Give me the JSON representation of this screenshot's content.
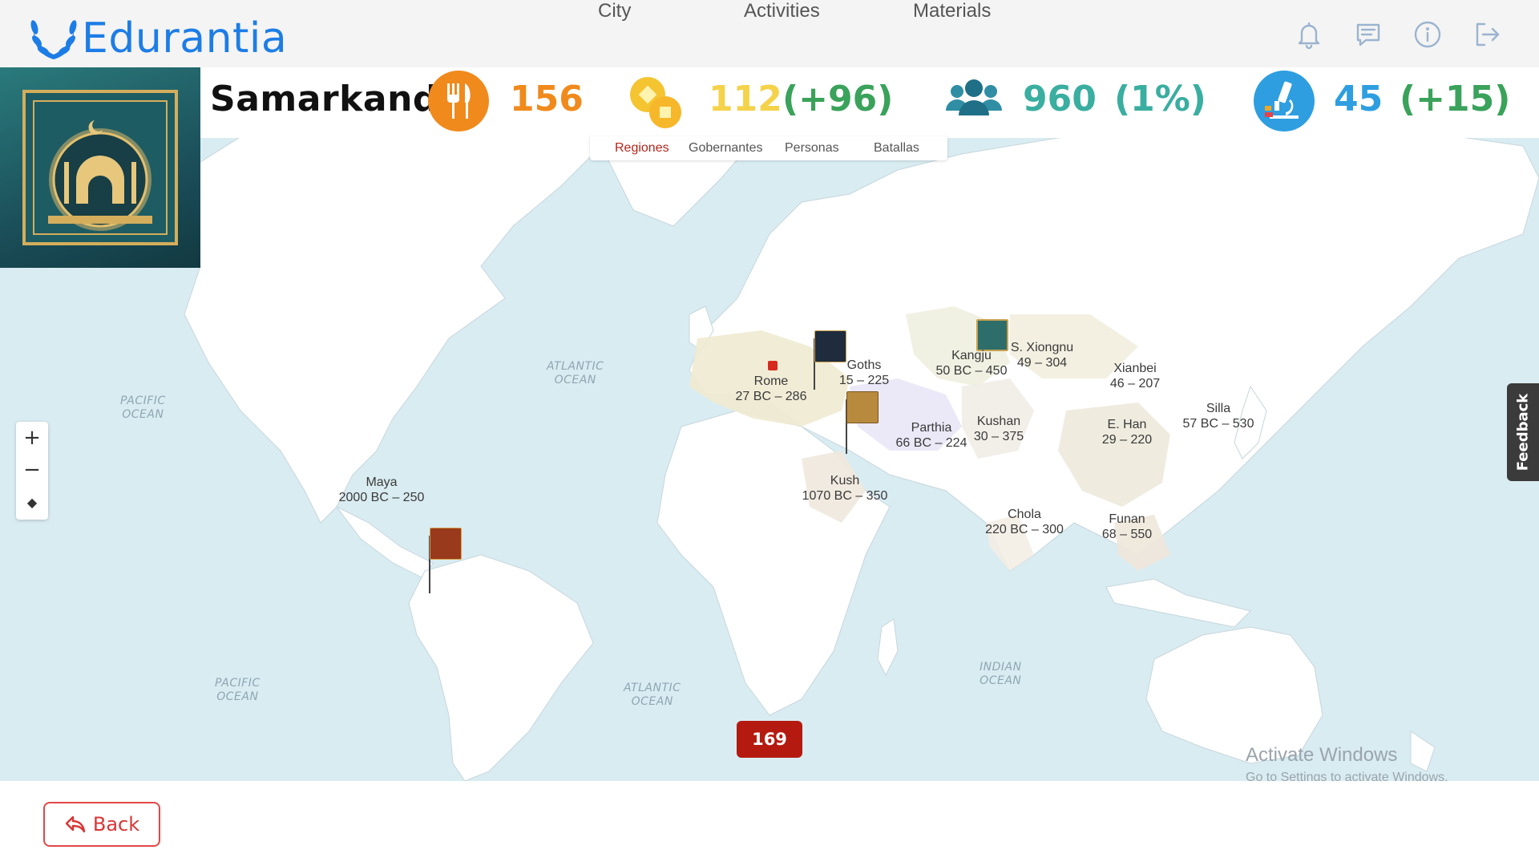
{
  "app": {
    "name": "Edurantia"
  },
  "nav": {
    "items": [
      "City",
      "Activities",
      "Materials"
    ]
  },
  "header_icons": [
    "bell-icon",
    "chat-icon",
    "info-icon",
    "logout-icon"
  ],
  "city": {
    "name": "Samarkand"
  },
  "stats": {
    "food": {
      "value": "156",
      "icon": "food-icon",
      "color": "#f08a1c"
    },
    "gold": {
      "value": "112",
      "delta": "(+96)",
      "icon": "coins-icon",
      "color": "#f4d24a"
    },
    "population": {
      "value": "960",
      "delta": "(1%)",
      "icon": "people-icon",
      "color": "#3aaea0"
    },
    "science": {
      "value": "45",
      "delta": "(+15)",
      "icon": "microscope-icon",
      "color": "#2e9ee0"
    },
    "delta_color": "#3aa25a"
  },
  "layer_tabs": {
    "items": [
      "Regiones",
      "Gobernantes",
      "Personas",
      "Batallas"
    ],
    "active": "Regiones"
  },
  "map": {
    "oceans": [
      {
        "line1": "PACIFIC",
        "line2": "OCEAN"
      },
      {
        "line1": "ATLANTIC",
        "line2": "OCEAN"
      },
      {
        "line1": "PACIFIC",
        "line2": "OCEAN"
      },
      {
        "line1": "ATLANTIC",
        "line2": "OCEAN"
      },
      {
        "line1": "INDIAN",
        "line2": "OCEAN"
      }
    ],
    "civilizations": [
      {
        "name": "Rome",
        "dates": "27 BC – 286"
      },
      {
        "name": "Goths",
        "dates": "15 – 225"
      },
      {
        "name": "Kangju",
        "dates": "50 BC – 450"
      },
      {
        "name": "S. Xiongnu",
        "dates": "49 – 304"
      },
      {
        "name": "Xianbei",
        "dates": "46 – 207"
      },
      {
        "name": "Silla",
        "dates": "57 BC – 530"
      },
      {
        "name": "E. Han",
        "dates": "29 – 220"
      },
      {
        "name": "Parthia",
        "dates": "66 BC – 224"
      },
      {
        "name": "Kushan",
        "dates": "30 – 375"
      },
      {
        "name": "Kush",
        "dates": "1070 BC – 350"
      },
      {
        "name": "Maya",
        "dates": "2000 BC – 250"
      },
      {
        "name": "Chola",
        "dates": "220 BC – 300"
      },
      {
        "name": "Funan",
        "dates": "68 – 550"
      }
    ],
    "zoom": {
      "in": "+",
      "out": "−",
      "compass": "◆"
    }
  },
  "feedback": {
    "label": "Feedback"
  },
  "year": {
    "value": "169"
  },
  "watermark": {
    "line1": "Activate Windows",
    "line2": "Go to Settings to activate Windows."
  },
  "footer": {
    "back_label": "Back"
  }
}
